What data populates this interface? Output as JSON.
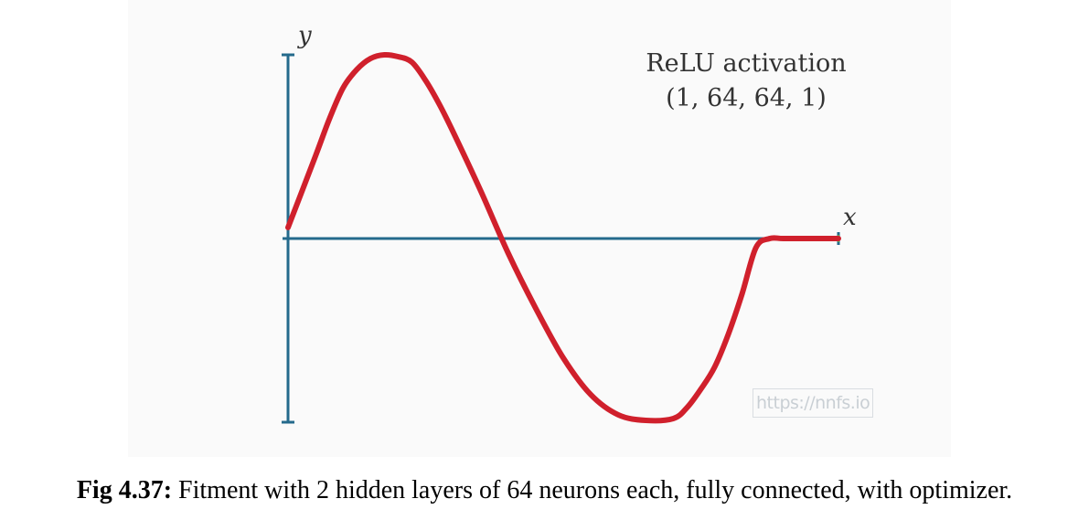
{
  "chart_data": {
    "type": "line",
    "xlabel": "x",
    "ylabel": "y",
    "annotation_title": "ReLU activation",
    "annotation_subtitle": "(1, 64, 64, 1)",
    "xlim": [
      0,
      1
    ],
    "ylim": [
      -1,
      1
    ],
    "grid": false,
    "series": [
      {
        "color": "#d0202c",
        "x": [
          0.0,
          0.05,
          0.075,
          0.1,
          0.125,
          0.15,
          0.175,
          0.2,
          0.225,
          0.25,
          0.275,
          0.3,
          0.35,
          0.4,
          0.45,
          0.5,
          0.55,
          0.6,
          0.65,
          0.7,
          0.725,
          0.75,
          0.775,
          0.8,
          0.825,
          0.85,
          0.875,
          0.9,
          0.95,
          1.0
        ],
        "values": [
          0.06,
          0.45,
          0.65,
          0.82,
          0.92,
          0.98,
          1.0,
          0.99,
          0.96,
          0.86,
          0.73,
          0.58,
          0.26,
          -0.08,
          -0.38,
          -0.65,
          -0.85,
          -0.96,
          -0.99,
          -0.98,
          -0.92,
          -0.82,
          -0.7,
          -0.52,
          -0.3,
          -0.05,
          0.0,
          0.0,
          0.0,
          0.0
        ]
      }
    ]
  },
  "watermark": "https://nnfs.io",
  "caption": {
    "label": "Fig 4.37:",
    "text": " Fitment with 2 hidden layers of 64 neurons each, fully connected, with optimizer."
  }
}
